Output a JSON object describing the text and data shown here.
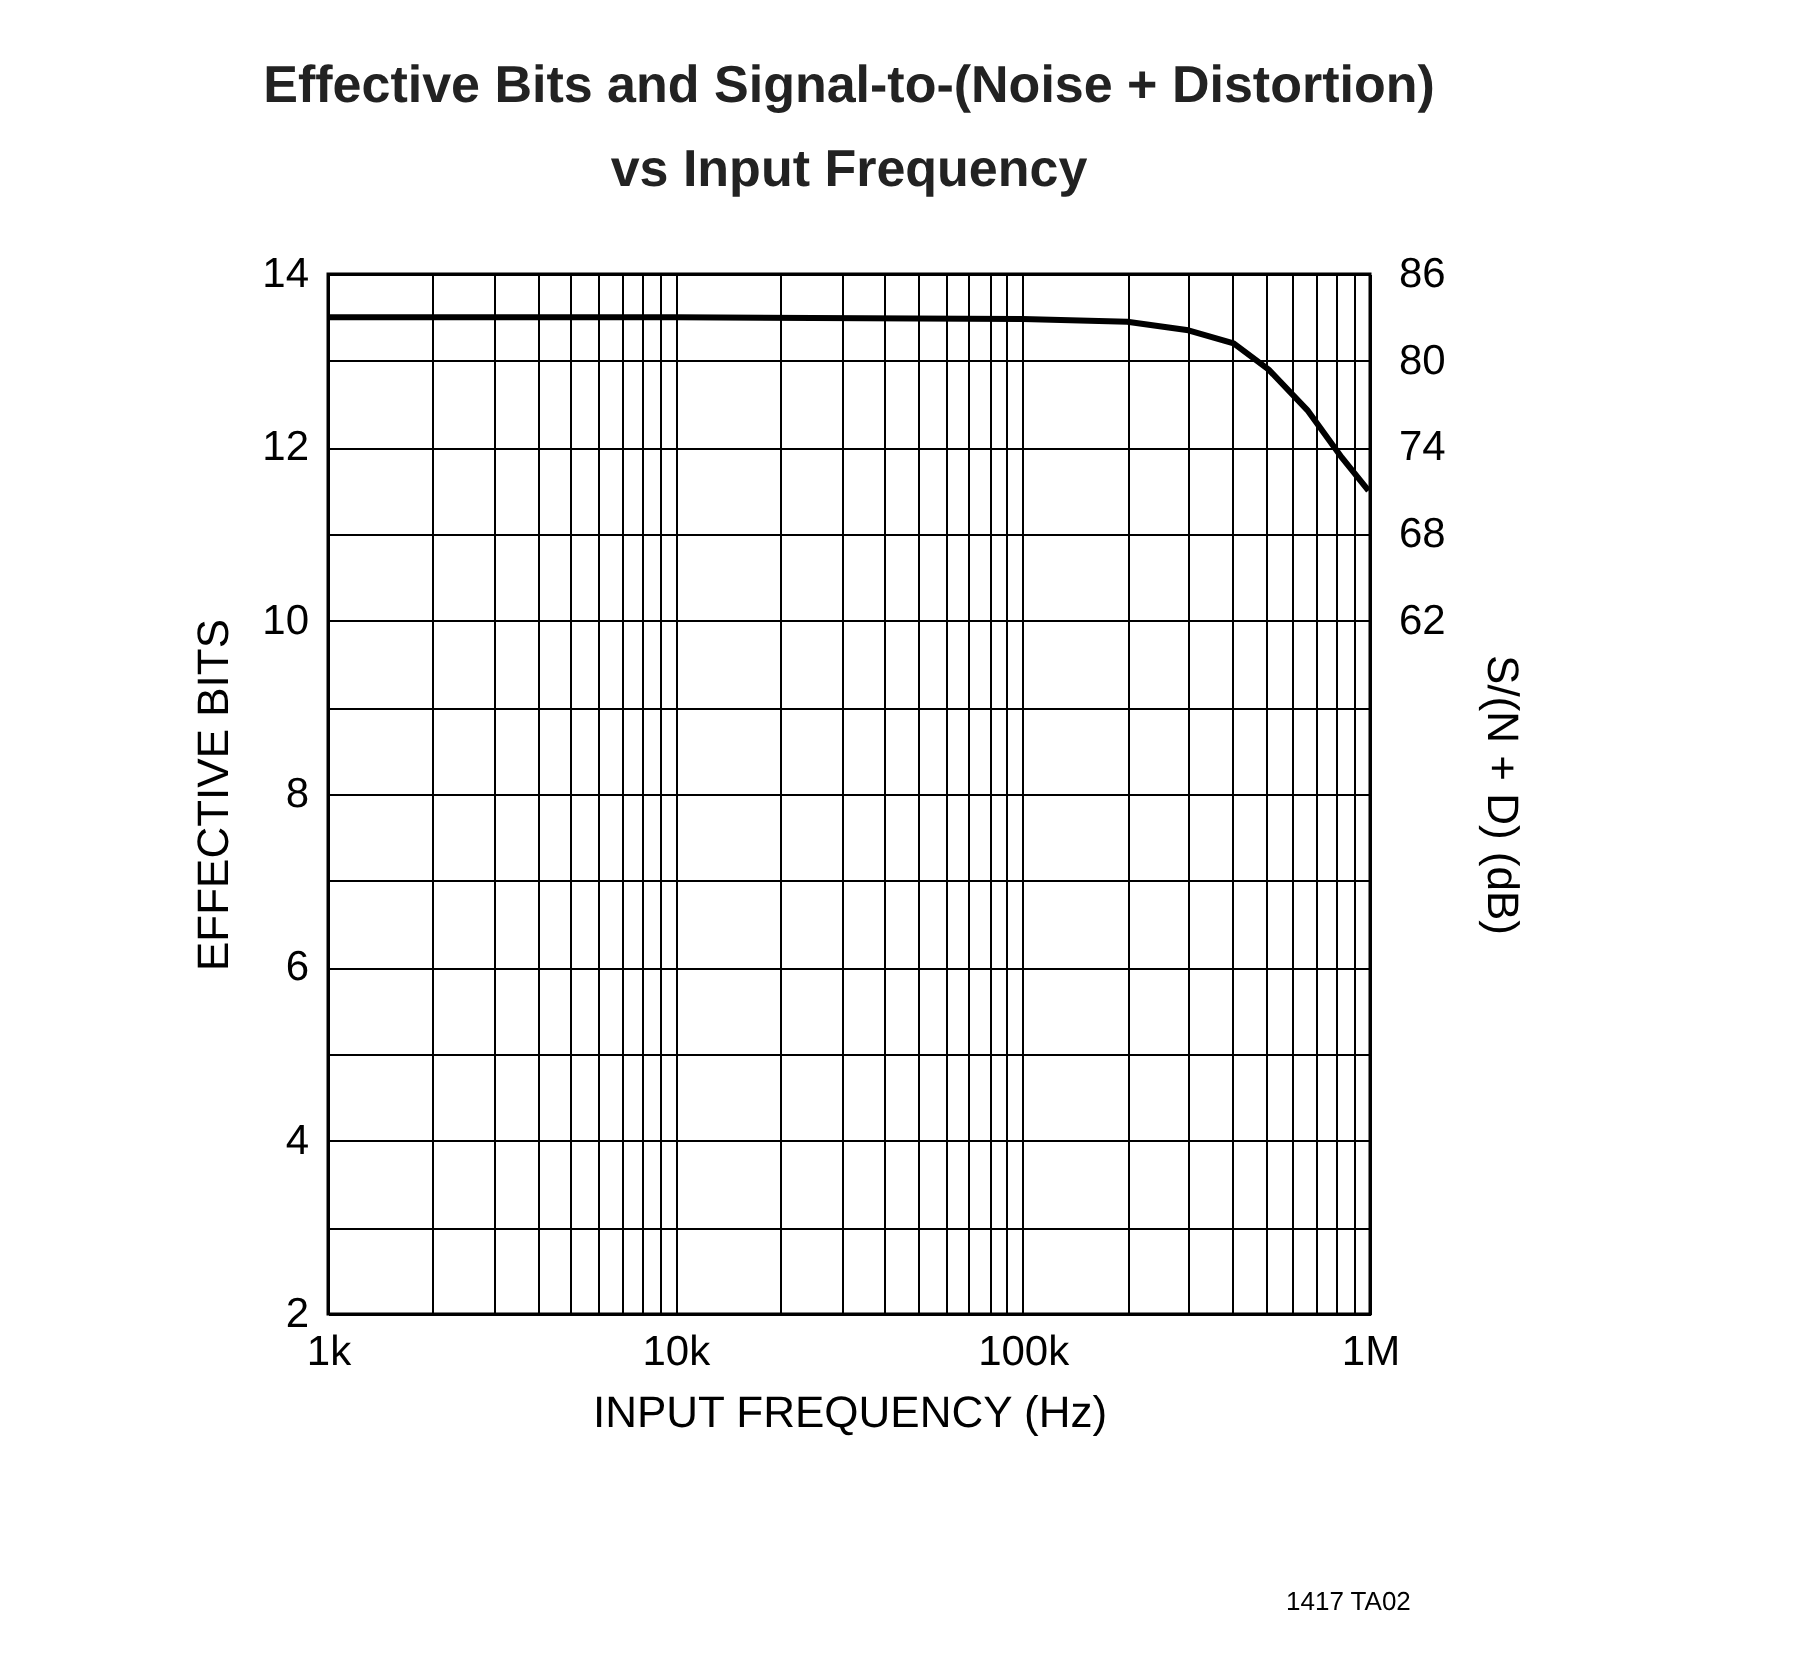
{
  "chart_data": {
    "type": "line",
    "title": [
      "Effective Bits and Signal-to-(Noise + Distortion)",
      "vs Input Frequency"
    ],
    "xlabel": "INPUT FREQUENCY (Hz)",
    "ylabel": "EFFECTIVE BITS",
    "y2label": "S/(N + D) (dB)",
    "annotations": [
      "1417 TA02"
    ],
    "log": "x",
    "grid": true,
    "marker": "none",
    "line_style": "solid",
    "xlim": [
      1000,
      1000000
    ],
    "xticks": [
      {
        "value": 1000,
        "label": "1k"
      },
      {
        "value": 2000,
        "label": null
      },
      {
        "value": 3000,
        "label": null
      },
      {
        "value": 4000,
        "label": null
      },
      {
        "value": 5000,
        "label": null
      },
      {
        "value": 6000,
        "label": null
      },
      {
        "value": 7000,
        "label": null
      },
      {
        "value": 8000,
        "label": null
      },
      {
        "value": 9000,
        "label": null
      },
      {
        "value": 10000,
        "label": "10k"
      },
      {
        "value": 20000,
        "label": null
      },
      {
        "value": 30000,
        "label": null
      },
      {
        "value": 40000,
        "label": null
      },
      {
        "value": 50000,
        "label": null
      },
      {
        "value": 60000,
        "label": null
      },
      {
        "value": 70000,
        "label": null
      },
      {
        "value": 80000,
        "label": null
      },
      {
        "value": 90000,
        "label": null
      },
      {
        "value": 100000,
        "label": "100k"
      },
      {
        "value": 200000,
        "label": null
      },
      {
        "value": 300000,
        "label": null
      },
      {
        "value": 400000,
        "label": null
      },
      {
        "value": 500000,
        "label": null
      },
      {
        "value": 600000,
        "label": null
      },
      {
        "value": 700000,
        "label": null
      },
      {
        "value": 800000,
        "label": null
      },
      {
        "value": 900000,
        "label": null
      },
      {
        "value": 1000000,
        "label": "1M"
      }
    ],
    "ylim": [
      2,
      14
    ],
    "yticks": [
      2,
      {
        "value": 3,
        "label": null
      },
      4,
      {
        "value": 5,
        "label": null
      },
      6,
      {
        "value": 7,
        "label": null
      },
      8,
      {
        "value": 9,
        "label": null
      },
      10,
      {
        "value": 11,
        "label": null
      },
      12,
      {
        "value": 13,
        "label": null
      },
      14
    ],
    "y2lim": [
      14,
      86
    ],
    "y2ticks": [
      62,
      68,
      74,
      80,
      86
    ],
    "series": [
      {
        "color": "#000000",
        "x": [
          1000,
          10000,
          100000,
          200000,
          300000,
          405000,
          510000,
          660000,
          830000,
          990000
        ],
        "values": [
          13.5,
          13.5,
          13.48,
          13.45,
          13.35,
          13.2,
          12.9,
          12.43,
          11.88,
          11.5
        ]
      }
    ]
  }
}
